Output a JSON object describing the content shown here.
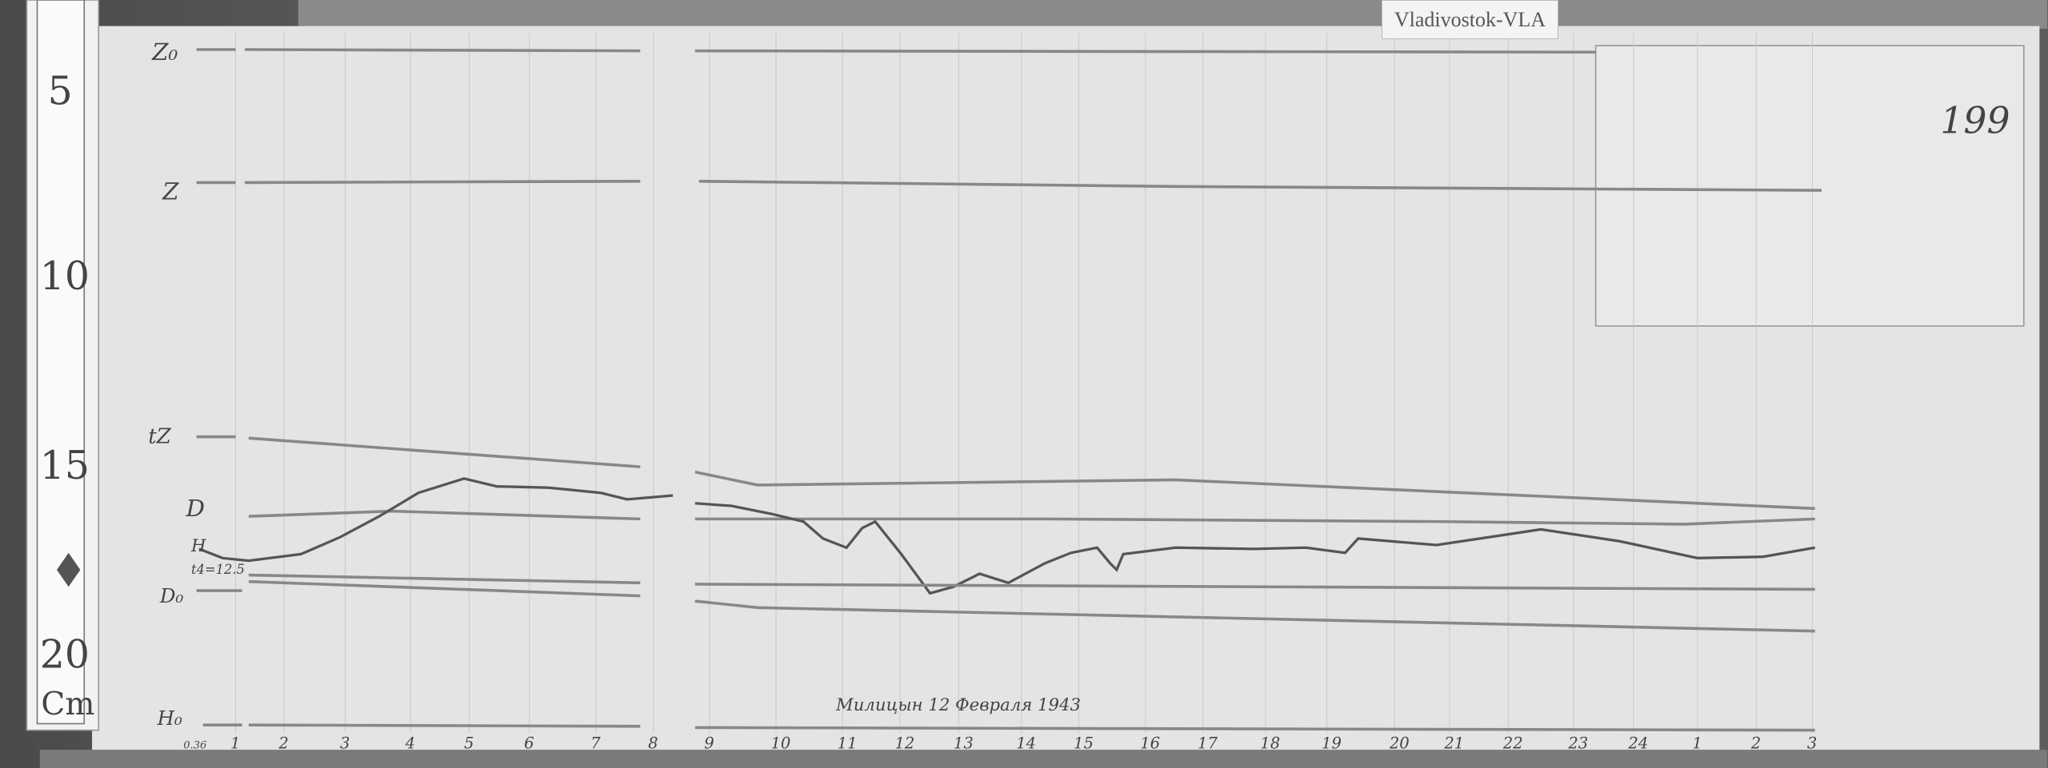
{
  "station_label": "Vladivostok-VLA",
  "sheet_number": "199",
  "ruler": {
    "marks": [
      "5",
      "10",
      "15",
      "20"
    ],
    "unit": "Cm"
  },
  "trace_labels": {
    "z0": "Z₀",
    "z": "Z",
    "tz": "tZ",
    "d": "D",
    "h": "H",
    "t": "t4=12.5",
    "d0": "D₀",
    "h0": "H₀",
    "h0_note": "0.36"
  },
  "hours": [
    "1",
    "2",
    "3",
    "4",
    "5",
    "6",
    "7",
    "8",
    "9",
    "10",
    "11",
    "12",
    "13",
    "14",
    "15",
    "16",
    "17",
    "18",
    "19",
    "20",
    "21",
    "22",
    "23",
    "24",
    "1",
    "2",
    "3"
  ],
  "footer_note": "Милицын 12 Февраля 1943"
}
